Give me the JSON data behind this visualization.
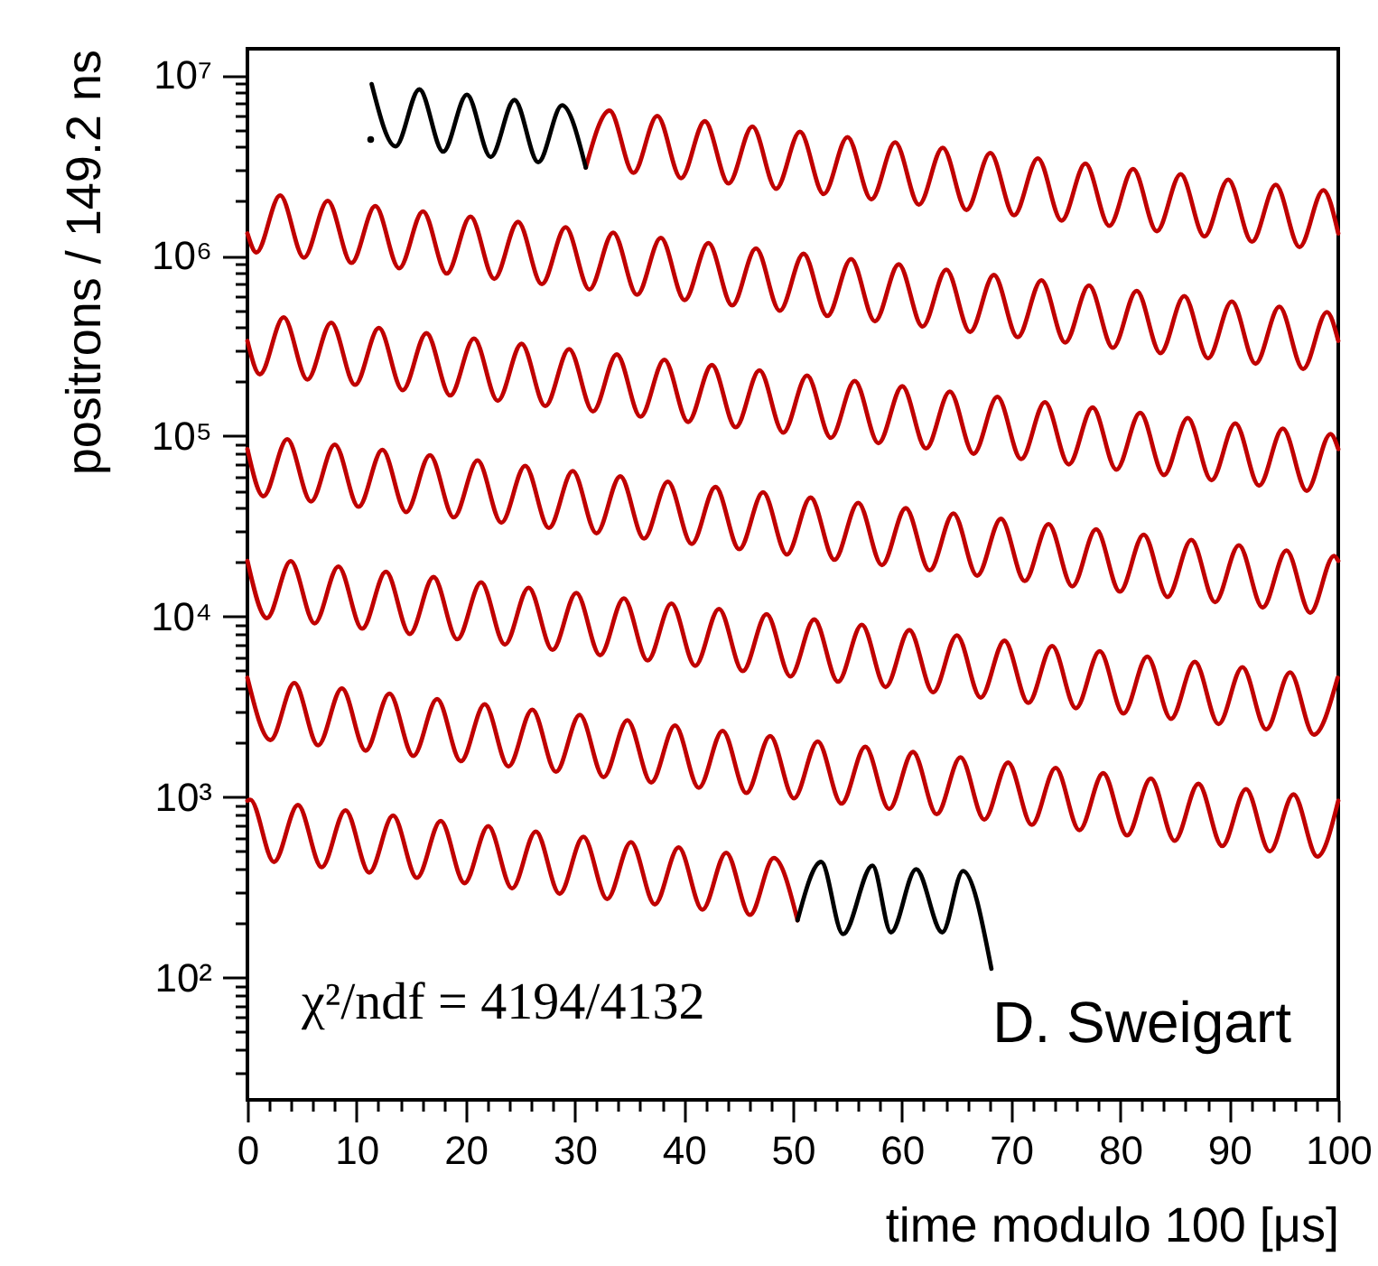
{
  "chart_data": {
    "type": "line",
    "xlabel": "time modulo 100 [μs]",
    "ylabel": "positrons / 149.2 ns",
    "log": true,
    "grid": false,
    "xlim": [
      0,
      100
    ],
    "ylim": [
      21,
      14000000.0
    ],
    "xticks": [
      0,
      {
        "value": 2,
        "label": null
      },
      {
        "value": 4,
        "label": null
      },
      {
        "value": 6,
        "label": null
      },
      {
        "value": 8,
        "label": null
      },
      10,
      {
        "value": 12,
        "label": null
      },
      {
        "value": 14,
        "label": null
      },
      {
        "value": 16,
        "label": null
      },
      {
        "value": 18,
        "label": null
      },
      20,
      {
        "value": 22,
        "label": null
      },
      {
        "value": 24,
        "label": null
      },
      {
        "value": 26,
        "label": null
      },
      {
        "value": 28,
        "label": null
      },
      30,
      {
        "value": 32,
        "label": null
      },
      {
        "value": 34,
        "label": null
      },
      {
        "value": 36,
        "label": null
      },
      {
        "value": 38,
        "label": null
      },
      40,
      {
        "value": 42,
        "label": null
      },
      {
        "value": 44,
        "label": null
      },
      {
        "value": 46,
        "label": null
      },
      {
        "value": 48,
        "label": null
      },
      50,
      {
        "value": 52,
        "label": null
      },
      {
        "value": 54,
        "label": null
      },
      {
        "value": 56,
        "label": null
      },
      {
        "value": 58,
        "label": null
      },
      60,
      {
        "value": 62,
        "label": null
      },
      {
        "value": 64,
        "label": null
      },
      {
        "value": 66,
        "label": null
      },
      {
        "value": 68,
        "label": null
      },
      70,
      {
        "value": 72,
        "label": null
      },
      {
        "value": 74,
        "label": null
      },
      {
        "value": 76,
        "label": null
      },
      {
        "value": 78,
        "label": null
      },
      80,
      {
        "value": 82,
        "label": null
      },
      {
        "value": 84,
        "label": null
      },
      {
        "value": 86,
        "label": null
      },
      {
        "value": 88,
        "label": null
      },
      90,
      {
        "value": 92,
        "label": null
      },
      {
        "value": 94,
        "label": null
      },
      {
        "value": 96,
        "label": null
      },
      {
        "value": 98,
        "label": null
      },
      100
    ],
    "yticks": [
      {
        "value": 30,
        "label": null
      },
      {
        "value": 40,
        "label": null
      },
      {
        "value": 50,
        "label": null
      },
      {
        "value": 60,
        "label": null
      },
      {
        "value": 70,
        "label": null
      },
      {
        "value": 80,
        "label": null
      },
      {
        "value": 90,
        "label": null
      },
      {
        "value": 100,
        "label": "10²"
      },
      {
        "value": 200,
        "label": null
      },
      {
        "value": 300,
        "label": null
      },
      {
        "value": 400,
        "label": null
      },
      {
        "value": 500,
        "label": null
      },
      {
        "value": 600,
        "label": null
      },
      {
        "value": 700,
        "label": null
      },
      {
        "value": 800,
        "label": null
      },
      {
        "value": 900,
        "label": null
      },
      {
        "value": 1000,
        "label": "10³"
      },
      {
        "value": 2000,
        "label": null
      },
      {
        "value": 3000,
        "label": null
      },
      {
        "value": 4000,
        "label": null
      },
      {
        "value": 5000,
        "label": null
      },
      {
        "value": 6000,
        "label": null
      },
      {
        "value": 7000,
        "label": null
      },
      {
        "value": 8000,
        "label": null
      },
      {
        "value": 9000,
        "label": null
      },
      {
        "value": 10000,
        "label": "10⁴"
      },
      {
        "value": 20000,
        "label": null
      },
      {
        "value": 30000,
        "label": null
      },
      {
        "value": 40000,
        "label": null
      },
      {
        "value": 50000,
        "label": null
      },
      {
        "value": 60000,
        "label": null
      },
      {
        "value": 70000,
        "label": null
      },
      {
        "value": 80000,
        "label": null
      },
      {
        "value": 90000,
        "label": null
      },
      {
        "value": 100000,
        "label": "10⁵"
      },
      {
        "value": 200000,
        "label": null
      },
      {
        "value": 300000,
        "label": null
      },
      {
        "value": 400000,
        "label": null
      },
      {
        "value": 500000,
        "label": null
      },
      {
        "value": 600000,
        "label": null
      },
      {
        "value": 700000,
        "label": null
      },
      {
        "value": 800000,
        "label": null
      },
      {
        "value": 900000,
        "label": null
      },
      {
        "value": 1000000,
        "label": "10⁶"
      },
      {
        "value": 2000000,
        "label": null
      },
      {
        "value": 3000000,
        "label": null
      },
      {
        "value": 4000000,
        "label": null
      },
      {
        "value": 5000000,
        "label": null
      },
      {
        "value": 6000000,
        "label": null
      },
      {
        "value": 7000000,
        "label": null
      },
      {
        "value": 8000000,
        "label": null
      },
      {
        "value": 9000000,
        "label": null
      },
      {
        "value": 10000000,
        "label": "10⁷"
      }
    ],
    "annotations": [
      "χ²/ndf = 4194/4132",
      "D. Sweigart"
    ],
    "series": [
      {
        "type": "line",
        "color": "#c00000",
        "x": [
          31.02,
          33.2,
          35.39,
          37.57,
          39.75,
          41.93,
          44.11,
          46.29,
          48.47,
          50.65,
          52.83,
          55.01,
          57.2,
          59.38,
          61.56,
          63.74,
          65.92,
          68.1,
          70.28,
          72.46,
          74.64,
          76.82,
          79.01,
          81.19,
          83.37,
          85.55,
          87.73,
          89.91,
          92.09,
          94.27,
          96.45,
          98.63,
          100
        ],
        "values": [
          3076000.0,
          6360000.0,
          2875000.0,
          5944000.0,
          2687000.0,
          5555000.0,
          2512000.0,
          5192000.0,
          2347000.0,
          4853000.0,
          2194000.0,
          4535000.0,
          2050000.0,
          4238000.0,
          1916000.0,
          3961000.0,
          1791000.0,
          3702000.0,
          1673000.0,
          3460000.0,
          1564000.0,
          3235000.0,
          1462000.0,
          3022000.0,
          1366000.0,
          2825000.0,
          1277000.0,
          2640000.0,
          1194000.0,
          2468000.0,
          1116000.0,
          2306000.0,
          1326000.0
        ]
      },
      {
        "type": "line",
        "color": "#c00000",
        "x": [
          0,
          0.82,
          3.0,
          5.18,
          7.36,
          9.54,
          11.72,
          13.91,
          16.09,
          18.27,
          20.45,
          22.63,
          24.81,
          26.99,
          29.17,
          31.35,
          33.53,
          35.72,
          37.9,
          40.08,
          42.26,
          44.44,
          46.62,
          48.8,
          50.98,
          53.16,
          55.34,
          57.53,
          59.71,
          61.89,
          64.07,
          66.25,
          68.43,
          70.61,
          72.79,
          74.97,
          77.15,
          79.34,
          81.52,
          83.7,
          85.88,
          88.06,
          90.24,
          92.42,
          94.6,
          96.78,
          98.96,
          100
        ],
        "values": [
          1326000.0,
          1042000.0,
          2155000.0,
          974300.0,
          2014000.0,
          910500.0,
          1882000.0,
          851000.0,
          1759000.0,
          795400.0,
          1644000.0,
          743500.0,
          1537000.0,
          694800.0,
          1436000.0,
          649300.0,
          1342000.0,
          606800.0,
          1255000.0,
          567200.0,
          1173000.0,
          530100.0,
          1096000.0,
          495400.0,
          1024000.0,
          463100.0,
          957300.0,
          432700.0,
          894600.0,
          404500.0,
          836100.0,
          378000.0,
          781400.0,
          353200.0,
          730300.0,
          330100.0,
          682700.0,
          308600.0,
          637900.0,
          288300.0,
          596300.0,
          269600.0,
          557300.0,
          251900.0,
          520900.0,
          235500.0,
          486800.0,
          336900.0
        ]
      },
      {
        "type": "line",
        "color": "#c00000",
        "x": [
          0,
          1.14,
          3.32,
          5.5,
          7.68,
          9.87,
          12.05,
          14.23,
          16.41,
          18.59,
          20.77,
          22.95,
          25.13,
          27.31,
          29.49,
          31.68,
          33.86,
          36.04,
          38.22,
          40.4,
          42.58,
          44.76,
          46.94,
          49.12,
          51.3,
          53.49,
          55.67,
          57.85,
          60.03,
          62.21,
          64.39,
          66.57,
          68.75,
          70.93,
          73.11,
          75.3,
          77.48,
          79.66,
          81.84,
          84.02,
          86.2,
          88.38,
          90.56,
          92.74,
          94.92,
          97.11,
          99.29,
          100
        ],
        "values": [
          336900.0,
          220000.0,
          455000.0,
          205700.0,
          425200.0,
          192200.0,
          397400.0,
          179700.0,
          371500.0,
          167900.0,
          347200.0,
          157000.0,
          324500.0,
          146700.0,
          303300.0,
          137100.0,
          283400.0,
          128100.0,
          264900.0,
          119800.0,
          247600.0,
          111900.0,
          231400.0,
          104600.0,
          216300.0,
          97780.0,
          202100.0,
          91360.0,
          188900.0,
          85400.0,
          176500.0,
          79810.0,
          165000.0,
          74570.0,
          154200.0,
          69710.0,
          144100.0,
          65160.0,
          134700.0,
          60880.0,
          125900.0,
          56920.0,
          117700.0,
          53190.0,
          110000.0,
          49730.0,
          102800.0,
          84700.0
        ]
      },
      {
        "type": "line",
        "color": "#c00000",
        "x": [
          0,
          1.47,
          3.65,
          5.83,
          8.01,
          10.19,
          12.37,
          14.55,
          16.73,
          18.92,
          21.1,
          23.28,
          25.46,
          27.64,
          29.82,
          32.0,
          34.18,
          36.36,
          38.54,
          40.73,
          42.91,
          45.09,
          47.27,
          49.45,
          51.63,
          53.81,
          55.99,
          58.17,
          60.35,
          62.54,
          64.72,
          66.9,
          69.08,
          71.26,
          73.44,
          75.62,
          77.8,
          79.98,
          82.16,
          84.35,
          86.53,
          88.71,
          90.89,
          93.07,
          95.25,
          97.43,
          99.61,
          100
        ],
        "values": [
          84700.0,
          46460.0,
          96050.0,
          43420.0,
          89770.0,
          40580.0,
          83900.0,
          37930.0,
          78410.0,
          35450.0,
          73290.0,
          33140.0,
          68490.0,
          30970.0,
          64020.0,
          28940.0,
          59830.0,
          27050.0,
          55920.0,
          25280.0,
          52260.0,
          23630.0,
          48840.0,
          22080.0,
          45650.0,
          20640.0,
          42670.0,
          19290.0,
          39870.0,
          18030.0,
          37270.0,
          16850.0,
          34830.0,
          15740.0,
          32550.0,
          14710.0,
          30430.0,
          13750.0,
          28430.0,
          12850.0,
          26580.0,
          12020.0,
          24840.0,
          11230.0,
          23220.0,
          10500.0,
          21700.0,
          20350.0
        ]
      },
      {
        "type": "line",
        "color": "#c00000",
        "x": [
          0,
          1.79,
          3.97,
          6.16,
          8.34,
          10.52,
          12.7,
          14.88,
          17.06,
          19.24,
          21.42,
          23.6,
          25.78,
          27.97,
          30.15,
          32.33,
          34.51,
          36.69,
          38.87,
          41.05,
          43.23,
          45.41,
          47.59,
          49.78,
          51.96,
          54.14,
          56.32,
          58.5,
          60.68,
          62.86,
          65.04,
          67.22,
          69.4,
          71.59,
          73.77,
          75.95,
          78.13,
          80.31,
          82.49,
          84.67,
          86.85,
          89.03,
          91.21,
          93.4,
          95.58,
          97.76,
          99.94
        ],
        "values": [
          20350.0,
          9807,
          20280.0,
          9169,
          18950.0,
          8568,
          17710.0,
          8009,
          16560.0,
          7485,
          15470.0,
          6997,
          14460.0,
          6538,
          13520.0,
          6110,
          12630.0,
          5711,
          11810.0,
          5338,
          11030.0,
          4989,
          10310.0,
          4662,
          9639,
          4358,
          9008,
          4072,
          8418,
          3807,
          7869,
          3557,
          7354,
          3324,
          6873,
          3107,
          6425,
          2904,
          6003,
          2713,
          5611,
          2537,
          5244,
          2371,
          4902,
          2217,
          4581
        ]
      },
      {
        "type": "line",
        "color": "#c00000",
        "x": [
          0,
          2.12,
          4.3,
          6.48,
          8.66,
          10.84,
          13.02,
          15.21,
          17.39,
          19.57,
          21.75,
          23.93,
          26.11,
          28.29,
          30.47,
          32.65,
          34.83,
          37.02,
          39.2,
          41.38,
          43.56,
          45.74,
          47.92,
          50.1,
          52.28,
          54.46,
          56.64,
          58.83,
          61.01,
          63.19,
          65.37,
          67.55,
          69.73,
          71.91,
          74.09,
          76.27,
          78.45,
          80.64,
          82.82,
          85.0,
          87.18,
          89.36,
          91.54,
          93.72,
          95.9,
          98.08,
          100
        ],
        "values": [
          4581,
          2071,
          4280,
          1935,
          4000,
          1808,
          3739,
          1690,
          3494,
          1580,
          3266,
          1477,
          3052,
          1380,
          2853,
          1290,
          2666,
          1205,
          2492,
          1126,
          2329,
          1053,
          2176,
          984.0,
          2034,
          919.8,
          1901,
          859.4,
          1777,
          803.4,
          1661,
          750.7,
          1552,
          701.5,
          1450,
          655.7,
          1356,
          612.9,
          1267,
          572.7,
          1184,
          535.4,
          1107,
          500.3,
          1034,
          467.8,
          954
        ]
      },
      {
        "type": "line",
        "color": "#c00000",
        "x": [
          0,
          0.26,
          2.44,
          4.63,
          6.81,
          8.99,
          11.17,
          13.35,
          15.54,
          17.72,
          19.9,
          22.08,
          24.26,
          26.44,
          28.62,
          30.8,
          32.98,
          35.16,
          37.35,
          39.53,
          41.71,
          43.89,
          46.07,
          48.25,
          50.43
        ],
        "values": [
          954,
          966.9,
          437.0,
          903.5,
          408.5,
          844.4,
          381.7,
          789.2,
          356.8,
          737.6,
          333.5,
          689.4,
          311.7,
          644.3,
          291.3,
          602.2,
          272.2,
          562.8,
          254.4,
          526.0,
          237.8,
          491.6,
          222.3,
          459.4,
          207.7
        ]
      },
      {
        "type": "line",
        "color": "#000000",
        "x": [
          11.39,
          13.58,
          15.76,
          17.94,
          20.12,
          22.3,
          24.48,
          26.66,
          28.84,
          31.02
        ],
        "values": [
          8918000.0,
          4032000.0,
          8335000.0,
          3769000.0,
          7790000.0,
          3522000.0,
          7281000.0,
          3292000.0,
          6805000.0,
          3076000.0
        ]
      },
      {
        "type": "line",
        "color": "#000000",
        "x": [
          50.43,
          52.6,
          54.6,
          57.3,
          59.0,
          61.3,
          63.7,
          65.6,
          68.2
        ],
        "values": [
          207.7,
          437,
          174,
          417,
          178,
          398,
          178,
          389,
          112
        ]
      },
      {
        "type": "scatter",
        "color": "#000000",
        "x": [
          11.3
        ],
        "values": [
          4400000.0
        ]
      }
    ]
  }
}
